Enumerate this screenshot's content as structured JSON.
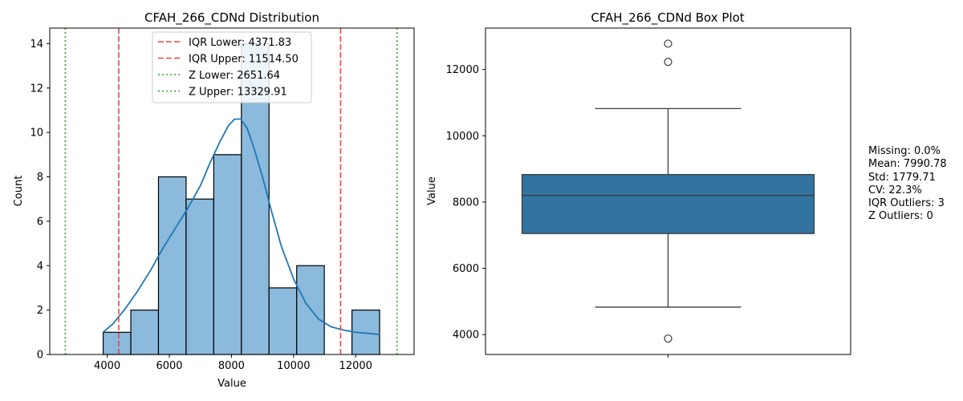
{
  "chart_data": [
    {
      "type": "bar",
      "title": "CFAH_266_CDNd Distribution",
      "xlabel": "Value",
      "ylabel": "Count",
      "xlim": [
        2150,
        13880
      ],
      "ylim": [
        0,
        14.7
      ],
      "xticks": [
        4000,
        6000,
        8000,
        10000,
        12000
      ],
      "yticks": [
        0,
        2,
        4,
        6,
        8,
        10,
        12,
        14
      ],
      "bin_edges": [
        3870,
        4760,
        5650,
        6540,
        7430,
        8320,
        9210,
        10100,
        10990,
        11880,
        12770
      ],
      "values": [
        1,
        2,
        8,
        7,
        9,
        14,
        3,
        4,
        0,
        2
      ],
      "colors": {
        "bar_fill": "#8bbadc",
        "bar_edge": "#000000",
        "kde": "#1f77b4",
        "iqr": "#ef4444",
        "z": "#2ca02c"
      },
      "kde": {
        "x": [
          3870,
          4200,
          4600,
          5000,
          5400,
          5800,
          6200,
          6600,
          7000,
          7300,
          7600,
          7900,
          8100,
          8300,
          8500,
          8700,
          9000,
          9300,
          9600,
          10000,
          10400,
          10800,
          11200,
          11600,
          12000,
          12400,
          12770
        ],
        "y": [
          1.0,
          1.4,
          2.1,
          2.9,
          3.8,
          4.8,
          5.7,
          6.6,
          7.6,
          8.6,
          9.5,
          10.3,
          10.6,
          10.6,
          10.2,
          9.4,
          8.0,
          6.4,
          4.9,
          3.4,
          2.3,
          1.6,
          1.25,
          1.1,
          1.0,
          0.95,
          0.9
        ]
      },
      "thresholds": [
        {
          "label": "IQR Lower: 4371.83",
          "value": 4371.83,
          "style": "iqr"
        },
        {
          "label": "IQR Upper: 11514.50",
          "value": 11514.5,
          "style": "iqr"
        },
        {
          "label": "Z Lower: 2651.64",
          "value": 2651.64,
          "style": "z"
        },
        {
          "label": "Z Upper: 13329.91",
          "value": 13329.91,
          "style": "z"
        }
      ],
      "legend_position": "top-center"
    },
    {
      "type": "box",
      "title": "CFAH_266_CDNd Box Plot",
      "xlabel": "",
      "ylabel": "Value",
      "ylim": [
        3400,
        13250
      ],
      "yticks": [
        4000,
        6000,
        8000,
        10000,
        12000
      ],
      "box": {
        "q1": 7050,
        "median": 8200,
        "q3": 8830,
        "whisker_low": 4830,
        "whisker_high": 10820
      },
      "outliers": [
        12780,
        12230,
        3880
      ],
      "colors": {
        "box_fill": "#3274a1",
        "line": "#3c3c3c"
      }
    }
  ],
  "stats": {
    "missing": "Missing: 0.0%",
    "mean": "Mean: 7990.78",
    "std": "Std: 1779.71",
    "cv": "CV: 22.3%",
    "iqr_outliers": "IQR Outliers: 3",
    "z_outliers": "Z Outliers: 0"
  }
}
